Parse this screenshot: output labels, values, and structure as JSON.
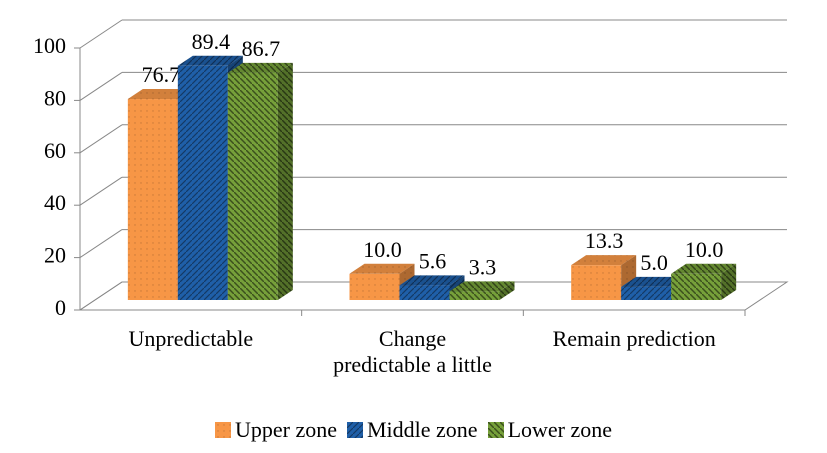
{
  "chart_data": {
    "type": "bar3d",
    "categories": [
      "Unpredictable",
      "Change predictable a little",
      "Remain prediction"
    ],
    "series": [
      {
        "name": "Upper zone",
        "color": "#f79646",
        "values": [
          76.7,
          10.0,
          13.3
        ],
        "value_labels": [
          "76.7",
          "10.0",
          "13.3"
        ]
      },
      {
        "name": "Middle zone",
        "color": "#1f5fa8",
        "values": [
          89.4,
          5.6,
          5.0
        ],
        "value_labels": [
          "89.4",
          "5.6",
          "5.0"
        ]
      },
      {
        "name": "Lower zone",
        "color": "#76a03a",
        "values": [
          86.7,
          3.3,
          10.0
        ],
        "value_labels": [
          "86.7",
          "3.3",
          "10.0"
        ]
      }
    ],
    "ylim": [
      0,
      100
    ],
    "yticks": [
      0,
      20,
      40,
      60,
      80,
      100
    ],
    "grid": true,
    "legend": "bottom"
  }
}
